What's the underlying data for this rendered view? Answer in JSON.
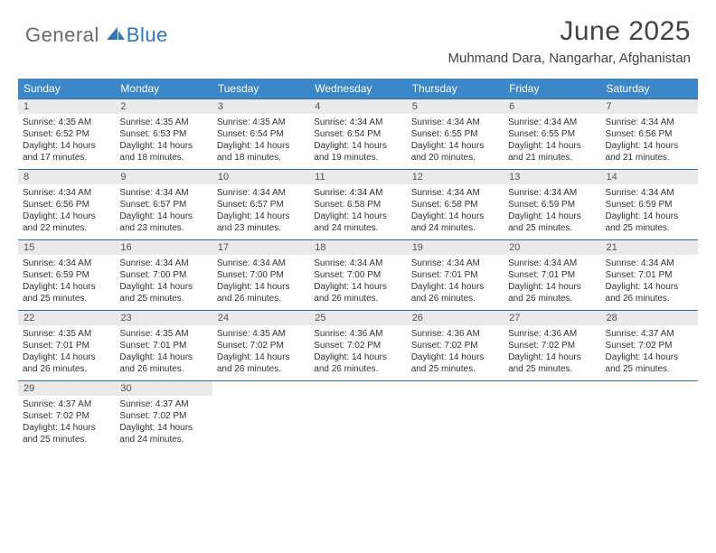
{
  "brand": {
    "general": "General",
    "blue": "Blue"
  },
  "header": {
    "month_title": "June 2025",
    "location": "Muhmand Dara, Nangarhar, Afghanistan"
  },
  "theme": {
    "header_bg": "#3b87c8",
    "header_fg": "#ffffff",
    "daynum_bg": "#eaeaea",
    "week_border": "#2d6ca3",
    "text_color": "#333333",
    "month_color": "#444444",
    "logo_gray": "#6a6a6a",
    "logo_blue": "#2f77b8"
  },
  "weekdays": [
    "Sunday",
    "Monday",
    "Tuesday",
    "Wednesday",
    "Thursday",
    "Friday",
    "Saturday"
  ],
  "weeks": [
    [
      {
        "n": "1",
        "sunrise": "Sunrise: 4:35 AM",
        "sunset": "Sunset: 6:52 PM",
        "day": "Daylight: 14 hours and 17 minutes."
      },
      {
        "n": "2",
        "sunrise": "Sunrise: 4:35 AM",
        "sunset": "Sunset: 6:53 PM",
        "day": "Daylight: 14 hours and 18 minutes."
      },
      {
        "n": "3",
        "sunrise": "Sunrise: 4:35 AM",
        "sunset": "Sunset: 6:54 PM",
        "day": "Daylight: 14 hours and 18 minutes."
      },
      {
        "n": "4",
        "sunrise": "Sunrise: 4:34 AM",
        "sunset": "Sunset: 6:54 PM",
        "day": "Daylight: 14 hours and 19 minutes."
      },
      {
        "n": "5",
        "sunrise": "Sunrise: 4:34 AM",
        "sunset": "Sunset: 6:55 PM",
        "day": "Daylight: 14 hours and 20 minutes."
      },
      {
        "n": "6",
        "sunrise": "Sunrise: 4:34 AM",
        "sunset": "Sunset: 6:55 PM",
        "day": "Daylight: 14 hours and 21 minutes."
      },
      {
        "n": "7",
        "sunrise": "Sunrise: 4:34 AM",
        "sunset": "Sunset: 6:56 PM",
        "day": "Daylight: 14 hours and 21 minutes."
      }
    ],
    [
      {
        "n": "8",
        "sunrise": "Sunrise: 4:34 AM",
        "sunset": "Sunset: 6:56 PM",
        "day": "Daylight: 14 hours and 22 minutes."
      },
      {
        "n": "9",
        "sunrise": "Sunrise: 4:34 AM",
        "sunset": "Sunset: 6:57 PM",
        "day": "Daylight: 14 hours and 23 minutes."
      },
      {
        "n": "10",
        "sunrise": "Sunrise: 4:34 AM",
        "sunset": "Sunset: 6:57 PM",
        "day": "Daylight: 14 hours and 23 minutes."
      },
      {
        "n": "11",
        "sunrise": "Sunrise: 4:34 AM",
        "sunset": "Sunset: 6:58 PM",
        "day": "Daylight: 14 hours and 24 minutes."
      },
      {
        "n": "12",
        "sunrise": "Sunrise: 4:34 AM",
        "sunset": "Sunset: 6:58 PM",
        "day": "Daylight: 14 hours and 24 minutes."
      },
      {
        "n": "13",
        "sunrise": "Sunrise: 4:34 AM",
        "sunset": "Sunset: 6:59 PM",
        "day": "Daylight: 14 hours and 25 minutes."
      },
      {
        "n": "14",
        "sunrise": "Sunrise: 4:34 AM",
        "sunset": "Sunset: 6:59 PM",
        "day": "Daylight: 14 hours and 25 minutes."
      }
    ],
    [
      {
        "n": "15",
        "sunrise": "Sunrise: 4:34 AM",
        "sunset": "Sunset: 6:59 PM",
        "day": "Daylight: 14 hours and 25 minutes."
      },
      {
        "n": "16",
        "sunrise": "Sunrise: 4:34 AM",
        "sunset": "Sunset: 7:00 PM",
        "day": "Daylight: 14 hours and 25 minutes."
      },
      {
        "n": "17",
        "sunrise": "Sunrise: 4:34 AM",
        "sunset": "Sunset: 7:00 PM",
        "day": "Daylight: 14 hours and 26 minutes."
      },
      {
        "n": "18",
        "sunrise": "Sunrise: 4:34 AM",
        "sunset": "Sunset: 7:00 PM",
        "day": "Daylight: 14 hours and 26 minutes."
      },
      {
        "n": "19",
        "sunrise": "Sunrise: 4:34 AM",
        "sunset": "Sunset: 7:01 PM",
        "day": "Daylight: 14 hours and 26 minutes."
      },
      {
        "n": "20",
        "sunrise": "Sunrise: 4:34 AM",
        "sunset": "Sunset: 7:01 PM",
        "day": "Daylight: 14 hours and 26 minutes."
      },
      {
        "n": "21",
        "sunrise": "Sunrise: 4:34 AM",
        "sunset": "Sunset: 7:01 PM",
        "day": "Daylight: 14 hours and 26 minutes."
      }
    ],
    [
      {
        "n": "22",
        "sunrise": "Sunrise: 4:35 AM",
        "sunset": "Sunset: 7:01 PM",
        "day": "Daylight: 14 hours and 26 minutes."
      },
      {
        "n": "23",
        "sunrise": "Sunrise: 4:35 AM",
        "sunset": "Sunset: 7:01 PM",
        "day": "Daylight: 14 hours and 26 minutes."
      },
      {
        "n": "24",
        "sunrise": "Sunrise: 4:35 AM",
        "sunset": "Sunset: 7:02 PM",
        "day": "Daylight: 14 hours and 26 minutes."
      },
      {
        "n": "25",
        "sunrise": "Sunrise: 4:36 AM",
        "sunset": "Sunset: 7:02 PM",
        "day": "Daylight: 14 hours and 26 minutes."
      },
      {
        "n": "26",
        "sunrise": "Sunrise: 4:36 AM",
        "sunset": "Sunset: 7:02 PM",
        "day": "Daylight: 14 hours and 25 minutes."
      },
      {
        "n": "27",
        "sunrise": "Sunrise: 4:36 AM",
        "sunset": "Sunset: 7:02 PM",
        "day": "Daylight: 14 hours and 25 minutes."
      },
      {
        "n": "28",
        "sunrise": "Sunrise: 4:37 AM",
        "sunset": "Sunset: 7:02 PM",
        "day": "Daylight: 14 hours and 25 minutes."
      }
    ],
    [
      {
        "n": "29",
        "sunrise": "Sunrise: 4:37 AM",
        "sunset": "Sunset: 7:02 PM",
        "day": "Daylight: 14 hours and 25 minutes."
      },
      {
        "n": "30",
        "sunrise": "Sunrise: 4:37 AM",
        "sunset": "Sunset: 7:02 PM",
        "day": "Daylight: 14 hours and 24 minutes."
      },
      {
        "n": "",
        "sunrise": "",
        "sunset": "",
        "day": ""
      },
      {
        "n": "",
        "sunrise": "",
        "sunset": "",
        "day": ""
      },
      {
        "n": "",
        "sunrise": "",
        "sunset": "",
        "day": ""
      },
      {
        "n": "",
        "sunrise": "",
        "sunset": "",
        "day": ""
      },
      {
        "n": "",
        "sunrise": "",
        "sunset": "",
        "day": ""
      }
    ]
  ]
}
